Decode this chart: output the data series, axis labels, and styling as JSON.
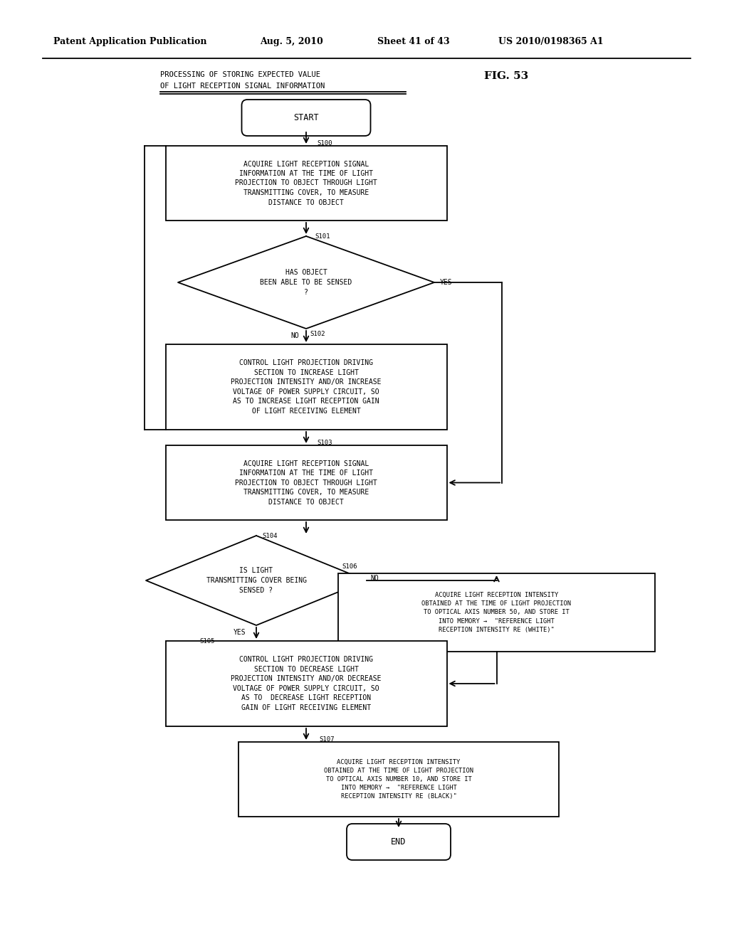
{
  "bg_color": "#ffffff",
  "line_color": "#000000",
  "text_color": "#000000",
  "patent_header": "Patent Application Publication",
  "patent_date": "Aug. 5, 2010",
  "patent_sheet": "Sheet 41 of 43",
  "patent_num": "US 2010/0198365 A1",
  "title_line1": "PROCESSING OF STORING EXPECTED VALUE",
  "title_line2": "OF LIGHT RECEPTION SIGNAL INFORMATION",
  "fig_label": "FIG. 53",
  "start_label": "START",
  "end_label": "END",
  "s100_label": "S100",
  "s101_label": "S101",
  "s102_label": "S102",
  "s103_label": "S103",
  "s104_label": "S104",
  "s105_label": "S105",
  "s106_label": "S106",
  "s107_label": "S107",
  "box_s100": "ACQUIRE LIGHT RECEPTION SIGNAL\nINFORMATION AT THE TIME OF LIGHT\nPROJECTION TO OBJECT THROUGH LIGHT\nTRANSMITTING COVER, TO MEASURE\nDISTANCE TO OBJECT",
  "box_s101": "HAS OBJECT\nBEEN ABLE TO BE SENSED\n?",
  "box_s102": "CONTROL LIGHT PROJECTION DRIVING\nSECTION TO INCREASE LIGHT\nPROJECTION INTENSITY AND/OR INCREASE\nVOLTAGE OF POWER SUPPLY CIRCUIT, SO\nAS TO INCREASE LIGHT RECEPTION GAIN\nOF LIGHT RECEIVING ELEMENT",
  "box_s103": "ACQUIRE LIGHT RECEPTION SIGNAL\nINFORMATION AT THE TIME OF LIGHT\nPROJECTION TO OBJECT THROUGH LIGHT\nTRANSMITTING COVER, TO MEASURE\nDISTANCE TO OBJECT",
  "box_s104": "IS LIGHT\nTRANSMITTING COVER BEING\nSENSED ?",
  "box_s105": "CONTROL LIGHT PROJECTION DRIVING\nSECTION TO DECREASE LIGHT\nPROJECTION INTENSITY AND/OR DECREASE\nVOLTAGE OF POWER SUPPLY CIRCUIT, SO\nAS TO  DECREASE LIGHT RECEPTION\nGAIN OF LIGHT RECEIVING ELEMENT",
  "box_s106": "ACQUIRE LIGHT RECEPTION INTENSITY\nOBTAINED AT THE TIME OF LIGHT PROJECTION\nTO OPTICAL AXIS NUMBER 50, AND STORE IT\nINTO MEMORY →  \"REFERENCE LIGHT\nRECEPTION INTENSITY RE (WHITE)\"",
  "box_s107": "ACQUIRE LIGHT RECEPTION INTENSITY\nOBTAINED AT THE TIME OF LIGHT PROJECTION\nTO OPTICAL AXIS NUMBER 10, AND STORE IT\nINTO MEMORY →  \"REFERENCE LIGHT\nRECEPTION INTENSITY RE (BLACK)\"",
  "yes_label": "YES",
  "no_label": "NO",
  "font_main": "monospace",
  "font_header": "DejaVu Serif",
  "fs_body": 7.0,
  "fs_small": 6.5,
  "fs_header": 9.0,
  "fs_title": 7.5,
  "fs_fig": 11.0,
  "fs_terminal": 8.5,
  "lw": 1.3
}
